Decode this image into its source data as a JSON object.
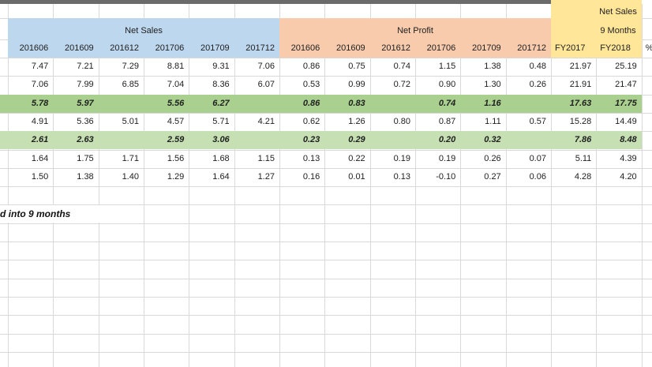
{
  "sheet": {
    "group_headers": [
      {
        "label": "Net Sales"
      },
      {
        "label": "Net Profit"
      },
      {
        "label": "Net Sales",
        "sublabel": "9 Months"
      }
    ],
    "column_headers": {
      "net_sales": [
        "201606",
        "201609",
        "201612",
        "201706",
        "201709",
        "201712"
      ],
      "net_profit": [
        "201606",
        "201609",
        "201612",
        "201706",
        "201709",
        "201712"
      ],
      "nine_months": [
        "FY2017",
        "FY2018"
      ],
      "extra": "%"
    },
    "data_rows": [
      {
        "style": "normal",
        "values": [
          "7.47",
          "7.21",
          "7.29",
          "8.81",
          "9.31",
          "7.06",
          "0.86",
          "0.75",
          "0.74",
          "1.15",
          "1.38",
          "0.48",
          "21.97",
          "25.19"
        ]
      },
      {
        "style": "normal",
        "values": [
          "7.06",
          "7.99",
          "6.85",
          "7.04",
          "8.36",
          "6.07",
          "0.53",
          "0.99",
          "0.72",
          "0.90",
          "1.30",
          "0.26",
          "21.91",
          "21.47"
        ]
      },
      {
        "style": "green_dark",
        "values": [
          "5.78",
          "5.97",
          "",
          "5.56",
          "6.27",
          "",
          "0.86",
          "0.83",
          "",
          "0.74",
          "1.16",
          "",
          "17.63",
          "17.75"
        ]
      },
      {
        "style": "normal",
        "values": [
          "4.91",
          "5.36",
          "5.01",
          "4.57",
          "5.71",
          "4.21",
          "0.62",
          "1.26",
          "0.80",
          "0.87",
          "1.11",
          "0.57",
          "15.28",
          "14.49"
        ]
      },
      {
        "style": "green_light",
        "values": [
          "2.61",
          "2.63",
          "",
          "2.59",
          "3.06",
          "",
          "0.23",
          "0.29",
          "",
          "0.20",
          "0.32",
          "",
          "7.86",
          "8.48"
        ]
      },
      {
        "style": "normal",
        "values": [
          "1.64",
          "1.75",
          "1.71",
          "1.56",
          "1.68",
          "1.15",
          "0.13",
          "0.22",
          "0.19",
          "0.19",
          "0.26",
          "0.07",
          "5.11",
          "4.39"
        ]
      },
      {
        "style": "normal",
        "values": [
          "1.50",
          "1.38",
          "1.40",
          "1.29",
          "1.64",
          "1.27",
          "0.16",
          "0.01",
          "0.13",
          "-0.10",
          "0.27",
          "0.06",
          "4.28",
          "4.20"
        ]
      }
    ],
    "note": "d into 9 months",
    "colors": {
      "net_sales_band": "#BDD7EE",
      "net_profit_band": "#F8CBAD",
      "nine_months_band": "#FFE699",
      "highlight_row_dark": "#A9D08E",
      "highlight_row_light": "#C6E0B4",
      "top_bar": "#6b6b6b",
      "gridline": "#D9D9D9",
      "text": "#212121"
    }
  }
}
